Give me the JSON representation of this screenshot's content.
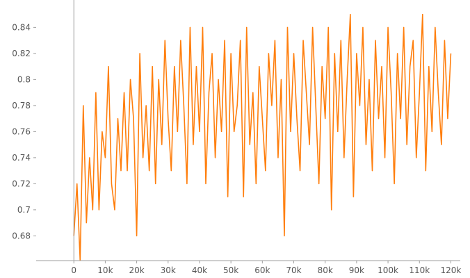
{
  "chart_data": {
    "type": "line",
    "title": "",
    "xlabel": "",
    "ylabel": "",
    "xlim": [
      -12000,
      123000
    ],
    "ylim": [
      0.661,
      0.861
    ],
    "grid": false,
    "legend": "none",
    "x_ticks": [
      {
        "value": 0,
        "label": "0"
      },
      {
        "value": 10000,
        "label": "10k"
      },
      {
        "value": 20000,
        "label": "20k"
      },
      {
        "value": 30000,
        "label": "30k"
      },
      {
        "value": 40000,
        "label": "40k"
      },
      {
        "value": 50000,
        "label": "50k"
      },
      {
        "value": 60000,
        "label": "60k"
      },
      {
        "value": 70000,
        "label": "70k"
      },
      {
        "value": 80000,
        "label": "80k"
      },
      {
        "value": 90000,
        "label": "90k"
      },
      {
        "value": 100000,
        "label": "100k"
      },
      {
        "value": 110000,
        "label": "110k"
      },
      {
        "value": 120000,
        "label": "120k"
      }
    ],
    "y_ticks": [
      {
        "value": 0.68,
        "label": "0.68"
      },
      {
        "value": 0.7,
        "label": "0.7"
      },
      {
        "value": 0.72,
        "label": "0.72"
      },
      {
        "value": 0.74,
        "label": "0.74"
      },
      {
        "value": 0.76,
        "label": "0.76"
      },
      {
        "value": 0.78,
        "label": "0.78"
      },
      {
        "value": 0.8,
        "label": "0.8"
      },
      {
        "value": 0.82,
        "label": "0.82"
      },
      {
        "value": 0.84,
        "label": "0.84"
      }
    ],
    "series": [
      {
        "color": "#ff7f0e",
        "x": [
          0,
          1000,
          2000,
          3000,
          4000,
          5000,
          6000,
          7000,
          8000,
          9000,
          10000,
          11000,
          12000,
          13000,
          14000,
          15000,
          16000,
          17000,
          18000,
          19000,
          20000,
          21000,
          22000,
          23000,
          24000,
          25000,
          26000,
          27000,
          28000,
          29000,
          30000,
          31000,
          32000,
          33000,
          34000,
          35000,
          36000,
          37000,
          38000,
          39000,
          40000,
          41000,
          42000,
          43000,
          44000,
          45000,
          46000,
          47000,
          48000,
          49000,
          50000,
          51000,
          52000,
          53000,
          54000,
          55000,
          56000,
          57000,
          58000,
          59000,
          60000,
          61000,
          62000,
          63000,
          64000,
          65000,
          66000,
          67000,
          68000,
          69000,
          70000,
          71000,
          72000,
          73000,
          74000,
          75000,
          76000,
          77000,
          78000,
          79000,
          80000,
          81000,
          82000,
          83000,
          84000,
          85000,
          86000,
          87000,
          88000,
          89000,
          90000,
          91000,
          92000,
          93000,
          94000,
          95000,
          96000,
          97000,
          98000,
          99000,
          100000,
          101000,
          102000,
          103000,
          104000,
          105000,
          106000,
          107000,
          108000,
          109000,
          110000,
          111000,
          112000,
          113000,
          114000,
          115000,
          116000,
          117000,
          118000,
          119000,
          120000
        ],
        "values": [
          0.68,
          0.72,
          0.66,
          0.78,
          0.69,
          0.74,
          0.7,
          0.79,
          0.7,
          0.76,
          0.74,
          0.81,
          0.72,
          0.7,
          0.77,
          0.73,
          0.79,
          0.73,
          0.8,
          0.77,
          0.68,
          0.82,
          0.74,
          0.78,
          0.73,
          0.81,
          0.72,
          0.8,
          0.75,
          0.83,
          0.77,
          0.73,
          0.81,
          0.76,
          0.83,
          0.78,
          0.72,
          0.84,
          0.75,
          0.81,
          0.76,
          0.84,
          0.72,
          0.79,
          0.82,
          0.74,
          0.8,
          0.76,
          0.83,
          0.71,
          0.82,
          0.76,
          0.78,
          0.83,
          0.71,
          0.84,
          0.75,
          0.79,
          0.72,
          0.81,
          0.77,
          0.73,
          0.82,
          0.78,
          0.83,
          0.74,
          0.8,
          0.68,
          0.84,
          0.76,
          0.82,
          0.77,
          0.73,
          0.83,
          0.79,
          0.75,
          0.84,
          0.78,
          0.72,
          0.81,
          0.77,
          0.84,
          0.7,
          0.82,
          0.76,
          0.83,
          0.74,
          0.8,
          0.85,
          0.71,
          0.82,
          0.78,
          0.84,
          0.75,
          0.8,
          0.73,
          0.83,
          0.77,
          0.81,
          0.74,
          0.84,
          0.79,
          0.72,
          0.82,
          0.77,
          0.84,
          0.75,
          0.81,
          0.83,
          0.74,
          0.79,
          0.85,
          0.73,
          0.81,
          0.76,
          0.84,
          0.79,
          0.75,
          0.83,
          0.77,
          0.82
        ]
      }
    ]
  }
}
